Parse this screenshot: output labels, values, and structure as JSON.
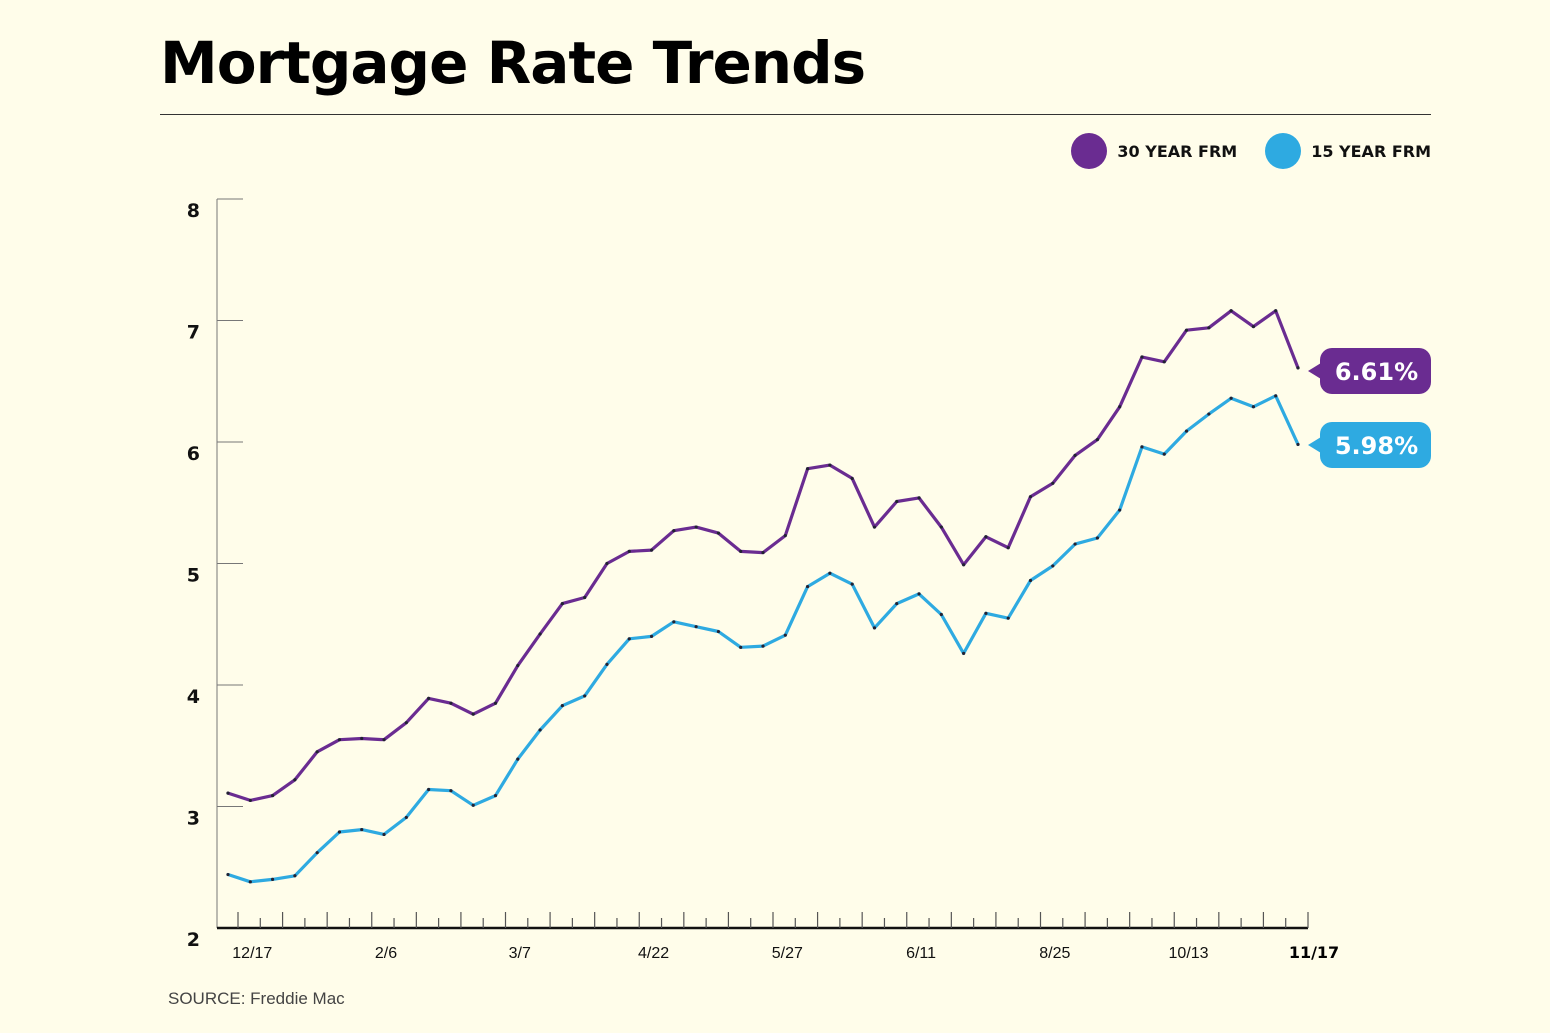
{
  "title": "Mortgage Rate Trends",
  "source": "SOURCE: Freddie Mac",
  "legend": [
    {
      "label": "30 YEAR FRM",
      "color": "#6a2c91"
    },
    {
      "label": "15 YEAR FRM",
      "color": "#2eaae1"
    }
  ],
  "chart_data": {
    "type": "line",
    "title": "Mortgage Rate Trends",
    "xlabel": "",
    "ylabel": "",
    "ylim": [
      2,
      8
    ],
    "yticks": [
      2,
      3,
      4,
      5,
      6,
      7,
      8
    ],
    "x_tick_labels": [
      {
        "index": 1,
        "label": "12/17"
      },
      {
        "index": 7,
        "label": "2/6"
      },
      {
        "index": 13,
        "label": "3/7"
      },
      {
        "index": 19,
        "label": "4/22"
      },
      {
        "index": 25,
        "label": "5/27"
      },
      {
        "index": 31,
        "label": "6/11"
      },
      {
        "index": 37,
        "label": "8/25"
      },
      {
        "index": 43,
        "label": "10/13"
      },
      {
        "index": 48,
        "label": "11/17"
      }
    ],
    "grid": false,
    "legend_position": "top-right",
    "series": [
      {
        "name": "30 YEAR FRM",
        "color": "#6a2c91",
        "end_label": "6.61%",
        "values": [
          3.11,
          3.05,
          3.09,
          3.22,
          3.45,
          3.55,
          3.56,
          3.55,
          3.69,
          3.89,
          3.85,
          3.76,
          3.85,
          4.16,
          4.42,
          4.67,
          4.72,
          5.0,
          5.1,
          5.11,
          5.27,
          5.3,
          5.25,
          5.1,
          5.09,
          5.23,
          5.78,
          5.81,
          5.7,
          5.3,
          5.51,
          5.54,
          5.3,
          4.99,
          5.22,
          5.13,
          5.55,
          5.66,
          5.89,
          6.02,
          6.29,
          6.7,
          6.66,
          6.92,
          6.94,
          7.08,
          6.95,
          7.08,
          6.61
        ]
      },
      {
        "name": "15 YEAR FRM",
        "color": "#2eaae1",
        "end_label": "5.98%",
        "values": [
          2.44,
          2.38,
          2.4,
          2.43,
          2.62,
          2.79,
          2.81,
          2.77,
          2.91,
          3.14,
          3.13,
          3.01,
          3.09,
          3.39,
          3.63,
          3.83,
          3.91,
          4.17,
          4.38,
          4.4,
          4.52,
          4.48,
          4.44,
          4.31,
          4.32,
          4.41,
          4.81,
          4.92,
          4.83,
          4.47,
          4.67,
          4.75,
          4.58,
          4.26,
          4.59,
          4.55,
          4.86,
          4.98,
          5.16,
          5.21,
          5.44,
          5.96,
          5.9,
          6.09,
          6.23,
          6.36,
          6.29,
          6.38,
          5.98
        ]
      }
    ]
  }
}
